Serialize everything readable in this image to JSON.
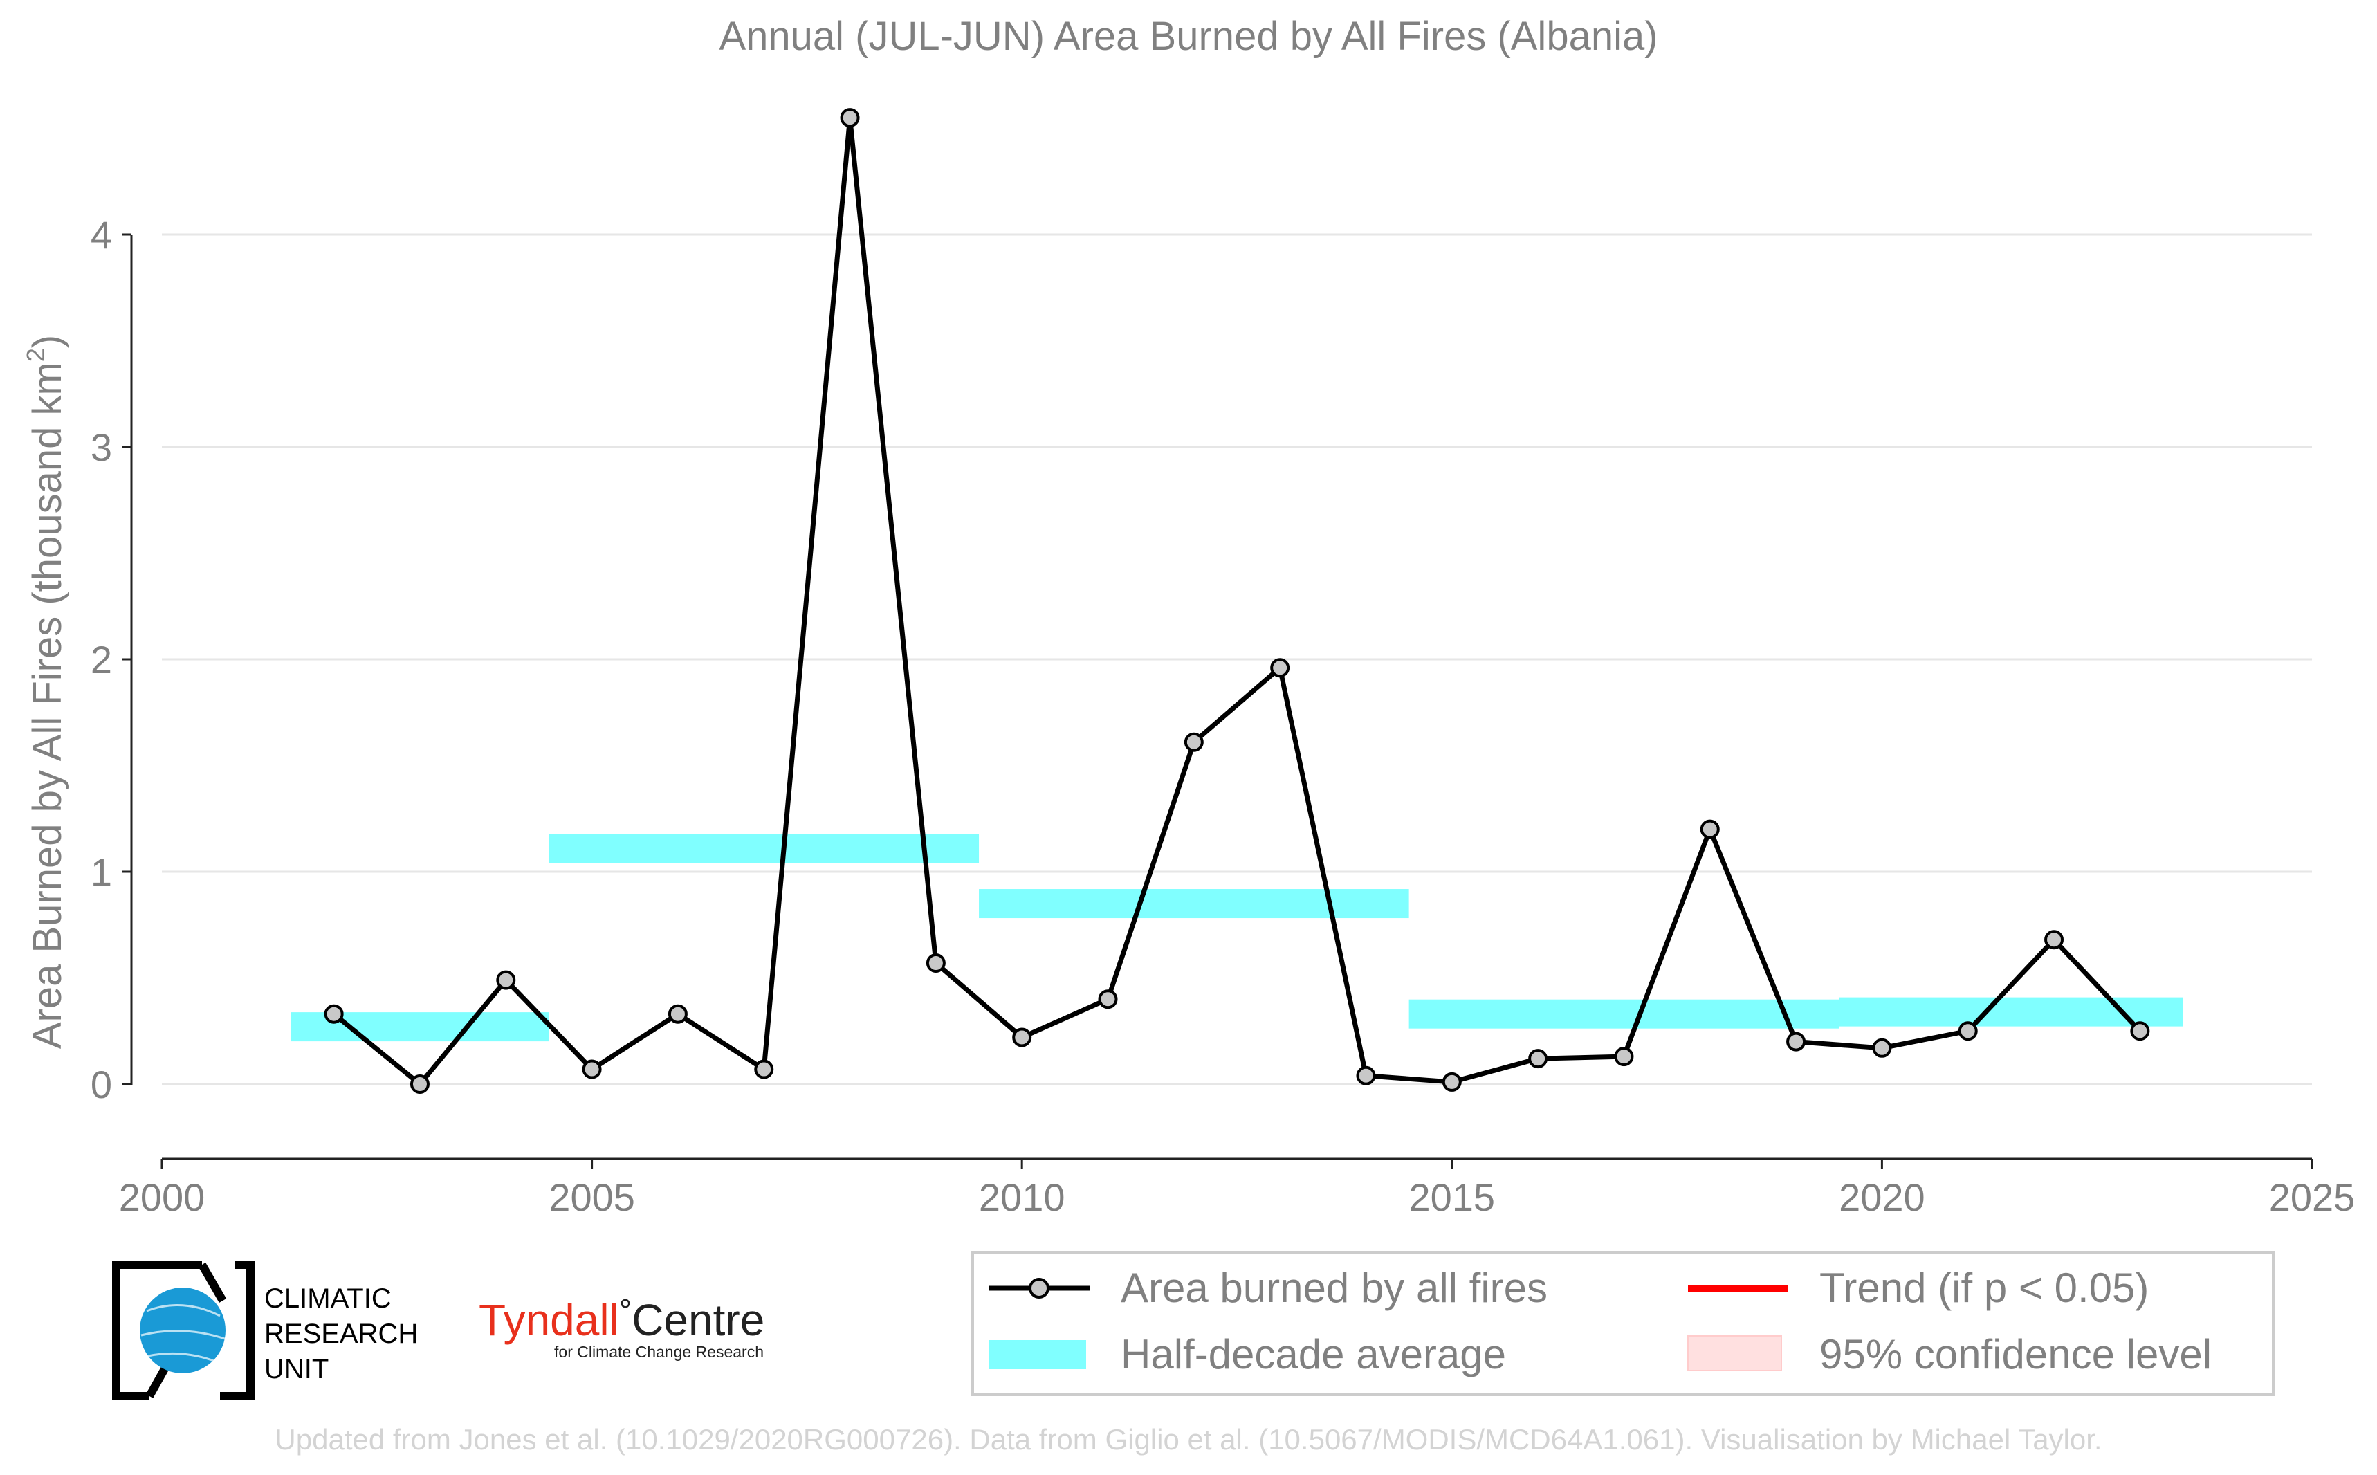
{
  "chart_data": {
    "type": "line",
    "title": "Annual (JUL-JUN) Area Burned by All Fires (Albania)",
    "ylabel": "Area Burned by All Fires (thousand km",
    "ylabel_sup": "2",
    "ylabel_close": ")",
    "xlim": [
      2000,
      2025
    ],
    "ylim": [
      -0.35,
      4.75
    ],
    "x_ticks": [
      2000,
      2005,
      2010,
      2015,
      2020,
      2025
    ],
    "y_ticks": [
      0,
      1,
      2,
      3,
      4
    ],
    "grid": "horizontal",
    "legend_position": "bottom-right",
    "series": [
      {
        "name": "Area burned by all fires",
        "color": "#000000",
        "marker_color": "#c8c8c8",
        "x": [
          2002,
          2003,
          2004,
          2005,
          2006,
          2007,
          2008,
          2009,
          2010,
          2011,
          2012,
          2013,
          2014,
          2015,
          2016,
          2017,
          2018,
          2019,
          2020,
          2021,
          2022,
          2023
        ],
        "y": [
          0.33,
          0.0,
          0.49,
          0.07,
          0.33,
          0.07,
          4.55,
          0.57,
          0.22,
          0.4,
          1.61,
          1.96,
          0.04,
          0.01,
          0.12,
          0.13,
          1.2,
          0.2,
          0.17,
          0.25,
          0.68,
          0.25
        ]
      }
    ],
    "half_decade_average": {
      "name": "Half-decade average",
      "color": "#80ffff",
      "segments": [
        {
          "x_start": 2001.5,
          "x_end": 2004.5,
          "value": 0.27
        },
        {
          "x_start": 2004.5,
          "x_end": 2009.5,
          "value": 1.11
        },
        {
          "x_start": 2009.5,
          "x_end": 2014.5,
          "value": 0.85
        },
        {
          "x_start": 2014.5,
          "x_end": 2019.5,
          "value": 0.33
        },
        {
          "x_start": 2019.5,
          "x_end": 2023.5,
          "value": 0.34
        }
      ]
    },
    "legend": [
      {
        "label": "Area burned by all fires",
        "kind": "line-marker",
        "color": "#000000"
      },
      {
        "label": "Half-decade average",
        "kind": "band",
        "color": "#80ffff"
      },
      {
        "label": "Trend (if p < 0.05)",
        "kind": "line",
        "color": "#ff0000"
      },
      {
        "label": "95% confidence level",
        "kind": "band",
        "color": "#ffe0e0"
      }
    ]
  },
  "logos": {
    "cru": {
      "line1": "CLIMATIC",
      "line2": "RESEARCH",
      "line3": "UNIT",
      "globe_color": "#1a9ad6"
    },
    "tyndall": {
      "name": "Tyndall",
      "degree": "°",
      "centre": "Centre",
      "subtitle": "for Climate Change Research",
      "color": "#e8301c"
    }
  },
  "footer": "Updated from Jones et al. (10.1029/2020RG000726). Data from Giglio et al. (10.5067/MODIS/MCD64A1.061). Visualisation by Michael Taylor."
}
